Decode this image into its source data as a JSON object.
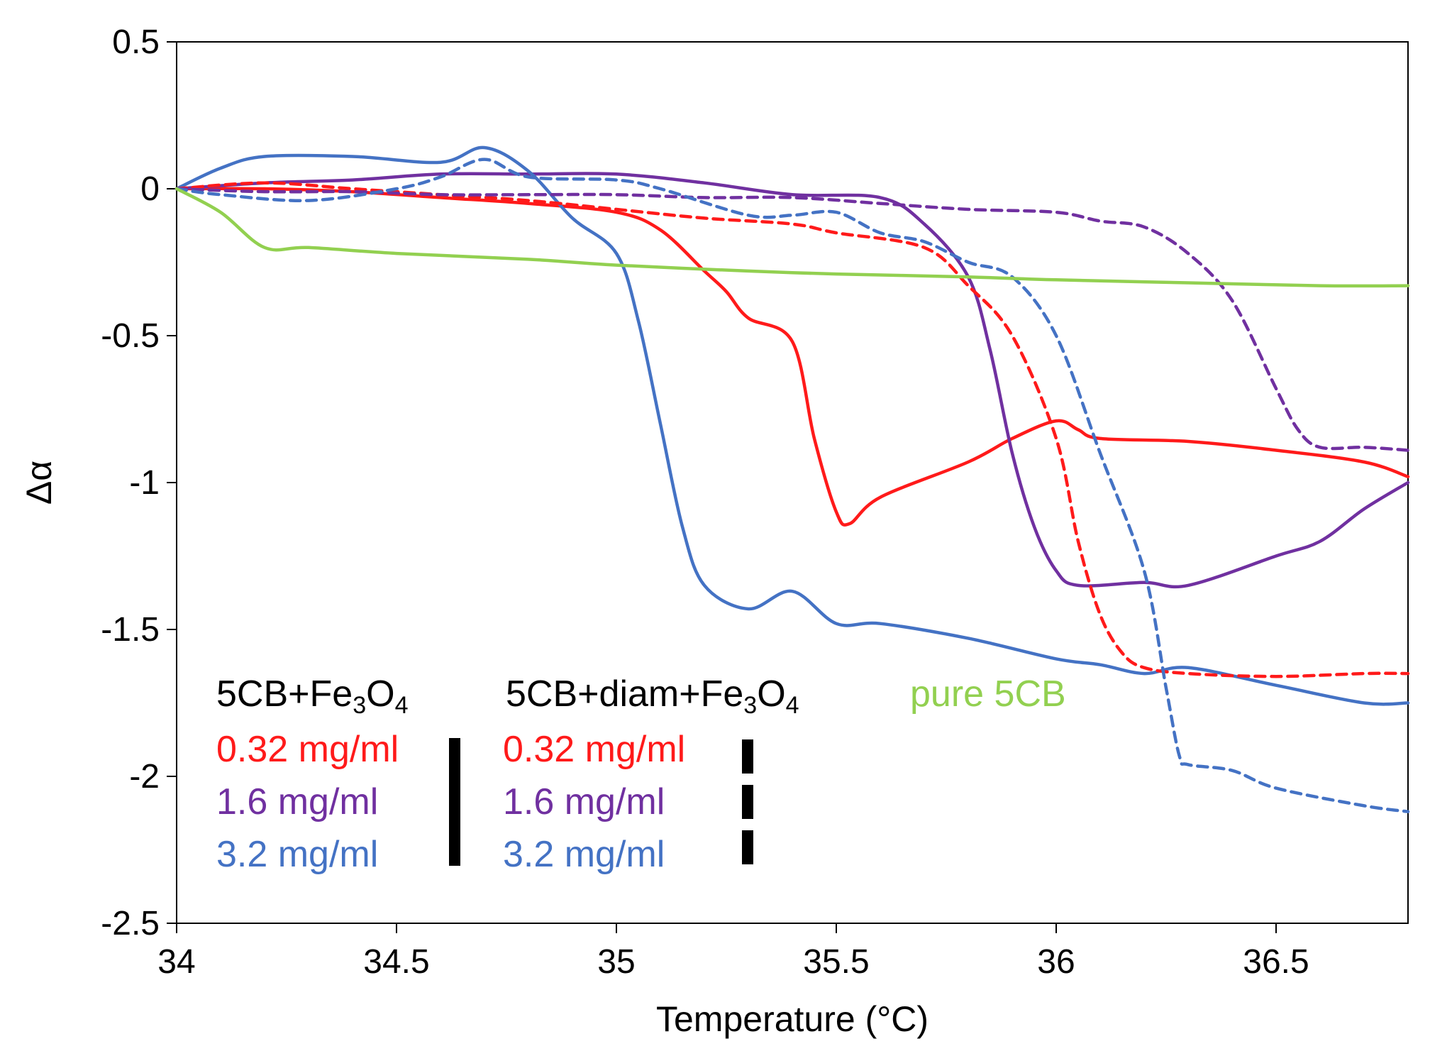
{
  "chart_data": {
    "type": "line",
    "title": "",
    "xlabel": "Temperature (°C)",
    "ylabel": "Δα",
    "xlim": [
      34,
      36.8
    ],
    "ylim": [
      -2.5,
      0.5
    ],
    "xticks": [
      34,
      34.5,
      35,
      35.5,
      36,
      36.5
    ],
    "xtick_labels": [
      "34",
      "34.5",
      "35",
      "35.5",
      "36",
      "36.5"
    ],
    "yticks": [
      0.5,
      0,
      -0.5,
      -1,
      -1.5,
      -2,
      -2.5
    ],
    "ytick_labels": [
      "0.5",
      "0",
      "-0.5",
      "-1",
      "-1.5",
      "-2",
      "-2.5"
    ],
    "colors": {
      "red": "#ff1a1a",
      "purple": "#7030a0",
      "blue": "#4472c4",
      "green": "#92d050"
    },
    "legend": {
      "group1_title": {
        "base": "5CB+Fe",
        "sub1": "3",
        "mid": "O",
        "sub2": "4"
      },
      "group2_title": {
        "base": "5CB+diam+Fe",
        "sub1": "3",
        "mid": "O",
        "sub2": "4"
      },
      "pure_label": "pure 5CB",
      "group1_entries": [
        "0.32 mg/ml",
        "1.6 mg/ml",
        "3.2 mg/ml"
      ],
      "group2_entries": [
        "0.32 mg/ml",
        "1.6 mg/ml",
        "3.2 mg/ml"
      ]
    },
    "series": [
      {
        "name": "5CB+Fe3O4 0.32 mg/ml",
        "color": "red",
        "dash": "solid",
        "x": [
          34,
          34.2,
          34.4,
          34.6,
          34.8,
          35.0,
          35.1,
          35.2,
          35.25,
          35.3,
          35.4,
          35.45,
          35.5,
          35.53,
          35.6,
          35.8,
          35.9,
          36.0,
          36.05,
          36.1,
          36.3,
          36.5,
          36.7,
          36.8
        ],
        "y": [
          0,
          0,
          -0.01,
          -0.03,
          -0.05,
          -0.08,
          -0.14,
          -0.28,
          -0.35,
          -0.44,
          -0.52,
          -0.85,
          -1.1,
          -1.14,
          -1.05,
          -0.93,
          -0.85,
          -0.79,
          -0.82,
          -0.85,
          -0.86,
          -0.89,
          -0.93,
          -0.98
        ]
      },
      {
        "name": "5CB+Fe3O4 1.6 mg/ml",
        "color": "purple",
        "dash": "solid",
        "x": [
          34,
          34.2,
          34.4,
          34.6,
          34.8,
          35.0,
          35.2,
          35.4,
          35.6,
          35.7,
          35.8,
          35.85,
          35.9,
          35.95,
          36.0,
          36.05,
          36.2,
          36.3,
          36.5,
          36.6,
          36.7,
          36.8
        ],
        "y": [
          0,
          0.02,
          0.03,
          0.05,
          0.05,
          0.05,
          0.02,
          -0.02,
          -0.03,
          -0.12,
          -0.3,
          -0.55,
          -0.9,
          -1.15,
          -1.3,
          -1.35,
          -1.34,
          -1.35,
          -1.25,
          -1.2,
          -1.09,
          -1.0
        ]
      },
      {
        "name": "5CB+Fe3O4 3.2 mg/ml",
        "color": "blue",
        "dash": "solid",
        "x": [
          34,
          34.1,
          34.2,
          34.4,
          34.6,
          34.7,
          34.8,
          34.9,
          35.0,
          35.05,
          35.1,
          35.15,
          35.2,
          35.3,
          35.4,
          35.5,
          35.6,
          35.8,
          36.0,
          36.1,
          36.2,
          36.3,
          36.5,
          36.7,
          36.8
        ],
        "y": [
          0,
          0.07,
          0.11,
          0.11,
          0.09,
          0.14,
          0.06,
          -0.1,
          -0.22,
          -0.45,
          -0.8,
          -1.15,
          -1.35,
          -1.43,
          -1.37,
          -1.48,
          -1.48,
          -1.53,
          -1.6,
          -1.62,
          -1.65,
          -1.63,
          -1.69,
          -1.75,
          -1.75
        ]
      },
      {
        "name": "5CB+diam+Fe3O4 0.32 mg/ml",
        "color": "red",
        "dash": "dashed",
        "x": [
          34,
          34.2,
          34.4,
          34.6,
          34.8,
          35.0,
          35.2,
          35.4,
          35.5,
          35.7,
          35.8,
          35.9,
          36.0,
          36.05,
          36.1,
          36.15,
          36.2,
          36.3,
          36.5,
          36.7,
          36.8
        ],
        "y": [
          0,
          0.02,
          0,
          -0.02,
          -0.04,
          -0.07,
          -0.1,
          -0.12,
          -0.15,
          -0.2,
          -0.33,
          -0.5,
          -0.85,
          -1.2,
          -1.45,
          -1.58,
          -1.63,
          -1.65,
          -1.66,
          -1.65,
          -1.65
        ]
      },
      {
        "name": "5CB+diam+Fe3O4 1.6 mg/ml",
        "color": "purple",
        "dash": "dashed",
        "x": [
          34,
          34.2,
          34.4,
          34.6,
          34.8,
          35.0,
          35.2,
          35.4,
          35.6,
          35.8,
          36.0,
          36.1,
          36.2,
          36.3,
          36.4,
          36.5,
          36.55,
          36.6,
          36.7,
          36.8
        ],
        "y": [
          0,
          -0.01,
          -0.01,
          -0.02,
          -0.02,
          -0.02,
          -0.03,
          -0.03,
          -0.05,
          -0.07,
          -0.08,
          -0.11,
          -0.13,
          -0.22,
          -0.38,
          -0.68,
          -0.82,
          -0.88,
          -0.88,
          -0.89
        ]
      },
      {
        "name": "5CB+diam+Fe3O4 3.2 mg/ml",
        "color": "blue",
        "dash": "dashed",
        "x": [
          34,
          34.1,
          34.3,
          34.5,
          34.6,
          34.7,
          34.8,
          35.0,
          35.1,
          35.3,
          35.4,
          35.5,
          35.6,
          35.7,
          35.8,
          35.9,
          36.0,
          36.1,
          36.2,
          36.25,
          36.28,
          36.3,
          36.4,
          36.5,
          36.7,
          36.8
        ],
        "y": [
          0,
          -0.02,
          -0.04,
          0,
          0.04,
          0.1,
          0.04,
          0.03,
          0.0,
          -0.09,
          -0.09,
          -0.08,
          -0.15,
          -0.18,
          -0.25,
          -0.3,
          -0.5,
          -0.9,
          -1.3,
          -1.7,
          -1.93,
          -1.96,
          -1.98,
          -2.04,
          -2.1,
          -2.12
        ]
      },
      {
        "name": "pure 5CB",
        "color": "green",
        "dash": "solid",
        "x": [
          34,
          34.1,
          34.2,
          34.3,
          34.5,
          34.8,
          35.0,
          35.3,
          35.5,
          35.8,
          36.0,
          36.3,
          36.6,
          36.8
        ],
        "y": [
          0,
          -0.08,
          -0.2,
          -0.2,
          -0.22,
          -0.24,
          -0.26,
          -0.28,
          -0.29,
          -0.3,
          -0.31,
          -0.32,
          -0.33,
          -0.33
        ]
      }
    ]
  }
}
